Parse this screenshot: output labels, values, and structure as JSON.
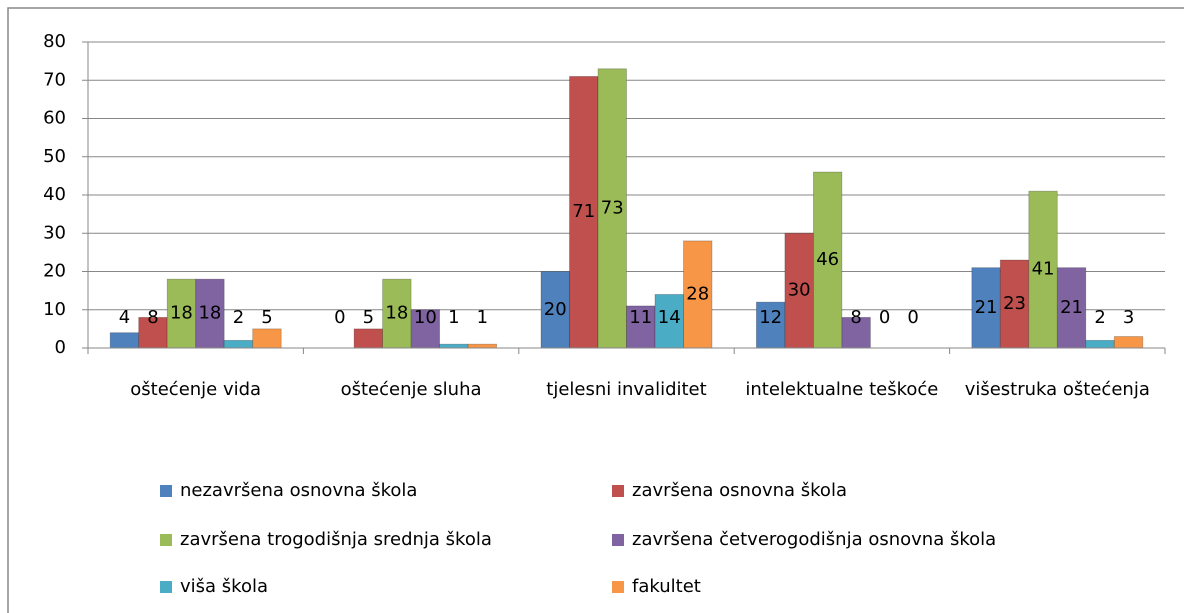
{
  "chart_data": {
    "type": "bar",
    "categories": [
      "oštećenje vida",
      "oštećenje sluha",
      "tjelesni invaliditet",
      "intelektualne teškoće",
      "višestruka oštećenja"
    ],
    "series": [
      {
        "name": "nezavršena osnovna škola",
        "color": "#4f81bd",
        "values": [
          4,
          0,
          20,
          12,
          21
        ]
      },
      {
        "name": "završena osnovna škola",
        "color": "#c0504d",
        "values": [
          8,
          5,
          71,
          30,
          23
        ]
      },
      {
        "name": "završena trogodišnja srednja škola",
        "color": "#9bbb59",
        "values": [
          18,
          18,
          73,
          46,
          41
        ]
      },
      {
        "name": "završena četverogodišnja osnovna škola",
        "color": "#8064a2",
        "values": [
          18,
          10,
          11,
          8,
          21
        ]
      },
      {
        "name": "viša škola",
        "color": "#4bacc6",
        "values": [
          2,
          1,
          14,
          0,
          2
        ]
      },
      {
        "name": "fakultet",
        "color": "#f79646",
        "values": [
          5,
          1,
          28,
          0,
          3
        ]
      }
    ],
    "ylim": [
      0,
      80
    ],
    "yticks": [
      0,
      10,
      20,
      30,
      40,
      50,
      60,
      70,
      80
    ],
    "grid": true
  }
}
